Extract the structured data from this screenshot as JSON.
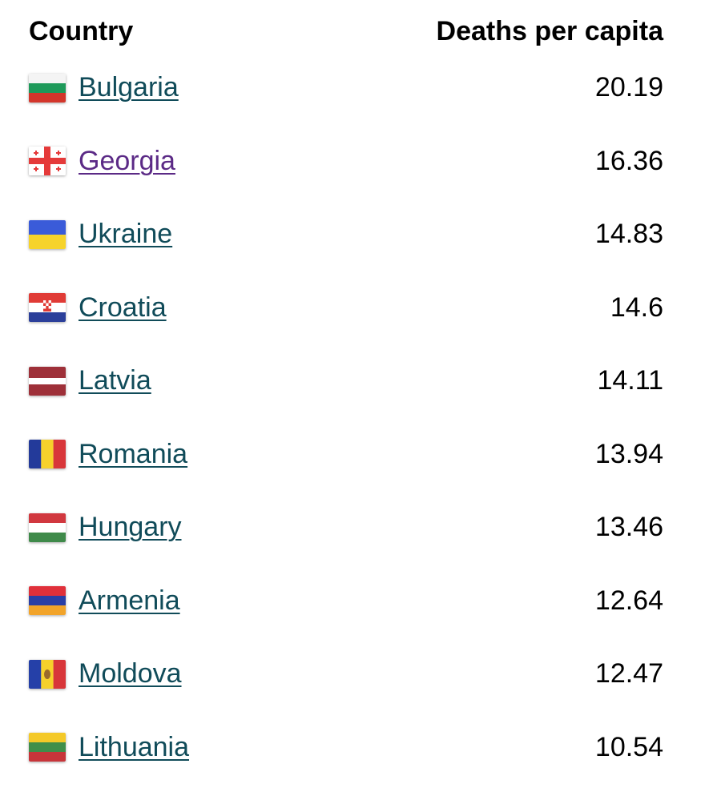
{
  "header": {
    "country": "Country",
    "deaths_per_capita": "Deaths per capita"
  },
  "rows": [
    {
      "country": "Bulgaria",
      "value": "20.19",
      "flag_icon": "bulgaria-flag-icon"
    },
    {
      "country": "Georgia",
      "value": "16.36",
      "flag_icon": "georgia-flag-icon",
      "visited": true
    },
    {
      "country": "Ukraine",
      "value": "14.83",
      "flag_icon": "ukraine-flag-icon"
    },
    {
      "country": "Croatia",
      "value": "14.6",
      "flag_icon": "croatia-flag-icon"
    },
    {
      "country": "Latvia",
      "value": "14.11",
      "flag_icon": "latvia-flag-icon"
    },
    {
      "country": "Romania",
      "value": "13.94",
      "flag_icon": "romania-flag-icon"
    },
    {
      "country": "Hungary",
      "value": "13.46",
      "flag_icon": "hungary-flag-icon"
    },
    {
      "country": "Armenia",
      "value": "12.64",
      "flag_icon": "armenia-flag-icon"
    },
    {
      "country": "Moldova",
      "value": "12.47",
      "flag_icon": "moldova-flag-icon"
    },
    {
      "country": "Lithuania",
      "value": "10.54",
      "flag_icon": "lithuania-flag-icon"
    }
  ],
  "colors": {
    "link": "#104b59",
    "visited_link": "#5b2a86",
    "text": "#000000"
  }
}
